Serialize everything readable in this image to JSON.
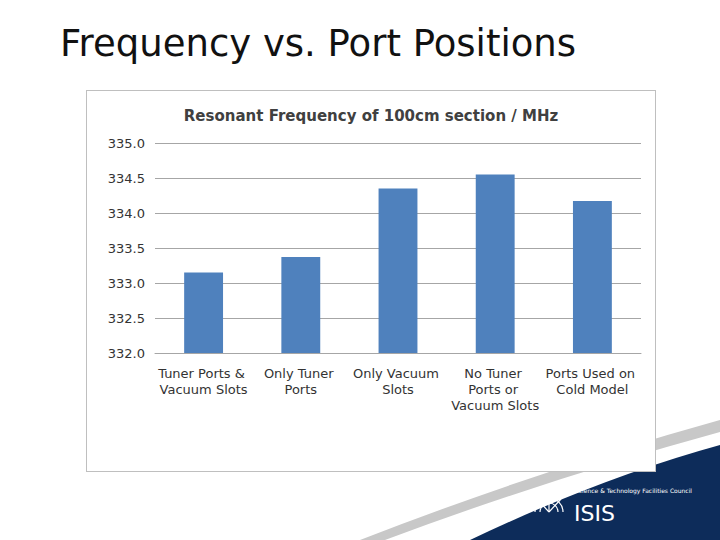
{
  "slide_title": "Frequency vs. Port Positions",
  "logo": {
    "name": "ISIS",
    "organisation": "Science & Technology Facilities Council"
  },
  "chart_data": {
    "type": "bar",
    "title": "Resonant Frequency of 100cm section / MHz",
    "categories": [
      "Tuner Ports & Vacuum Slots",
      "Only Tuner Ports",
      "Only Vacuum Slots",
      "No Tuner Ports or Vacuum Slots",
      "Ports Used on Cold Model"
    ],
    "values": [
      333.15,
      333.37,
      334.35,
      334.55,
      334.17
    ],
    "color": "#4f81bd",
    "ylim": [
      332,
      335
    ],
    "yticks": [
      {
        "value": 332,
        "label": "332.0"
      },
      {
        "value": 332.5,
        "label": "332.5"
      },
      {
        "value": 333,
        "label": "333.0"
      },
      {
        "value": 333.5,
        "label": "333.5"
      },
      {
        "value": 334,
        "label": "334.0"
      },
      {
        "value": 334.5,
        "label": "334.5"
      },
      {
        "value": 335,
        "label": "335.0"
      }
    ],
    "grid": true
  }
}
